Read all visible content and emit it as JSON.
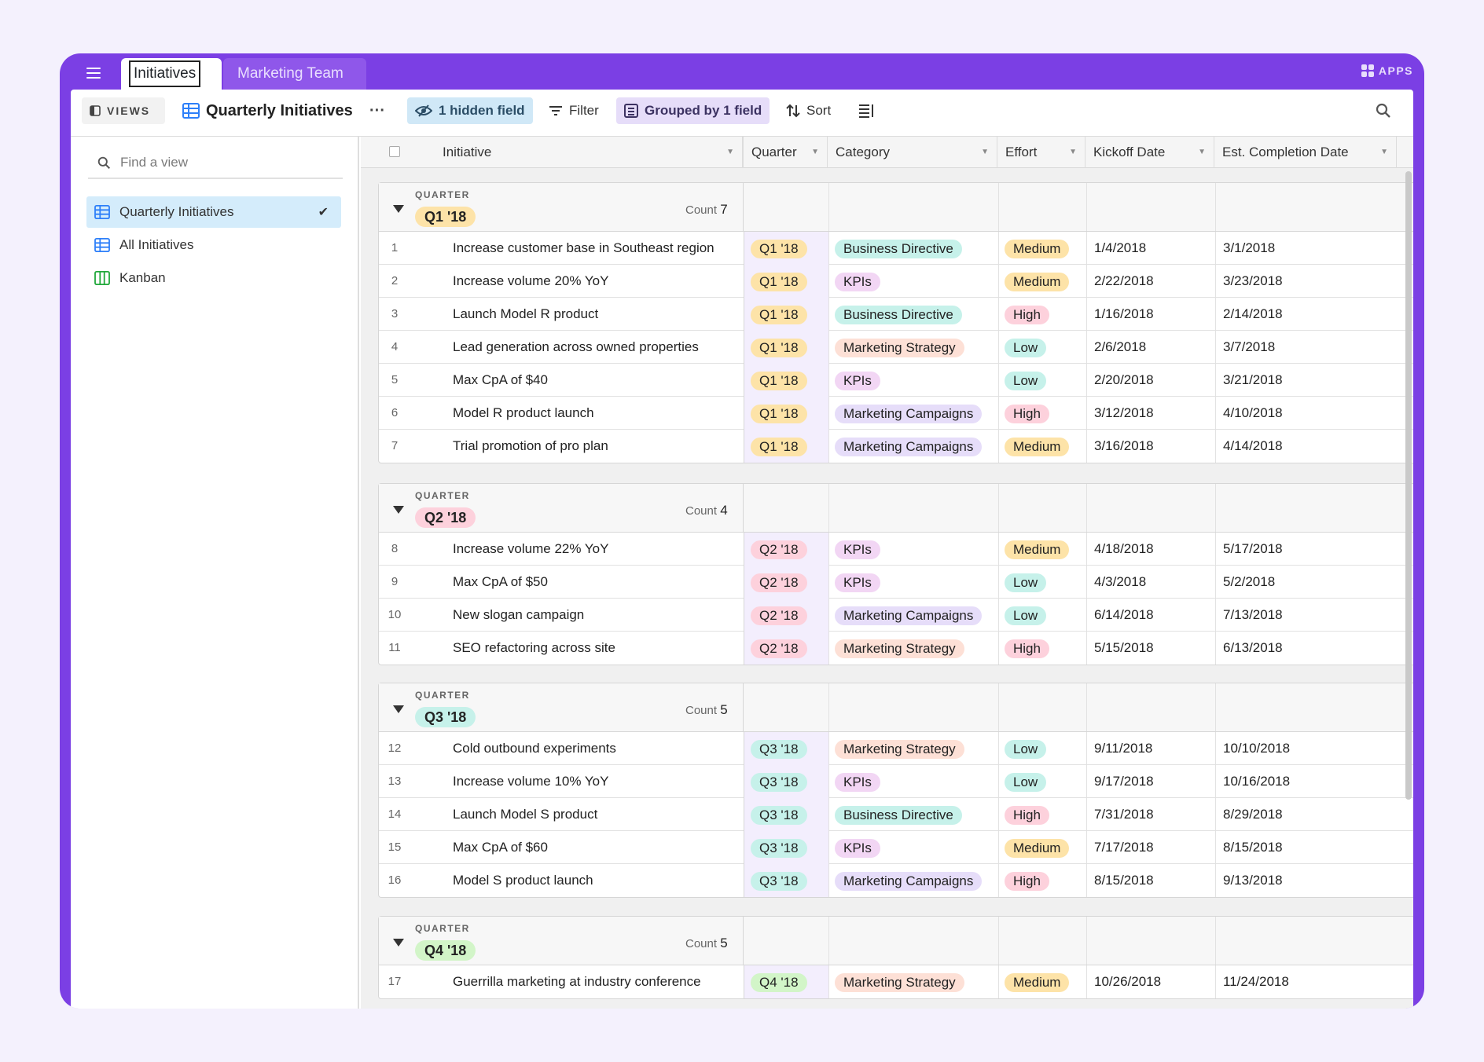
{
  "tabs": {
    "active": "Initiatives",
    "second": "Marketing Team",
    "apps": "APPS"
  },
  "toolbar": {
    "views": "VIEWS",
    "view_title": "Quarterly Initiatives",
    "more": "···",
    "hidden": "1 hidden field",
    "filter": "Filter",
    "grouped": "Grouped by 1 field",
    "sort": "Sort"
  },
  "sidebar": {
    "search_placeholder": "Find a view",
    "items": [
      {
        "label": "Quarterly Initiatives",
        "icon": "grid-icon",
        "active": true
      },
      {
        "label": "All Initiatives",
        "icon": "grid-icon",
        "active": false
      },
      {
        "label": "Kanban",
        "icon": "kanban-icon",
        "active": false
      }
    ]
  },
  "columns": [
    "Initiative",
    "Quarter",
    "Category",
    "Effort",
    "Kickoff Date",
    "Est. Completion Date"
  ],
  "colors": {
    "Q1 '18": "#fde3a8",
    "Q2 '18": "#fdd1dc",
    "Q3 '18": "#c6f1ea",
    "Q4 '18": "#d2f5c8",
    "Business Directive": "#c6f1ea",
    "KPIs": "#f2d6f4",
    "Marketing Strategy": "#fde0d6",
    "Marketing Campaigns": "#e6ddf9",
    "Medium": "#fde3a8",
    "High": "#fdd1dc",
    "Low": "#c6f1ea"
  },
  "groups": [
    {
      "label": "QUARTER",
      "name": "Q1 '18",
      "count_label": "Count",
      "count": "7",
      "rows": [
        {
          "n": "1",
          "name": "Increase customer base in Southeast region",
          "q": "Q1 '18",
          "cat": "Business Directive",
          "eff": "Medium",
          "kick": "1/4/2018",
          "comp": "3/1/2018"
        },
        {
          "n": "2",
          "name": "Increase volume 20% YoY",
          "q": "Q1 '18",
          "cat": "KPIs",
          "eff": "Medium",
          "kick": "2/22/2018",
          "comp": "3/23/2018"
        },
        {
          "n": "3",
          "name": "Launch Model R product",
          "q": "Q1 '18",
          "cat": "Business Directive",
          "eff": "High",
          "kick": "1/16/2018",
          "comp": "2/14/2018"
        },
        {
          "n": "4",
          "name": "Lead generation across owned properties",
          "q": "Q1 '18",
          "cat": "Marketing Strategy",
          "eff": "Low",
          "kick": "2/6/2018",
          "comp": "3/7/2018"
        },
        {
          "n": "5",
          "name": "Max CpA of $40",
          "q": "Q1 '18",
          "cat": "KPIs",
          "eff": "Low",
          "kick": "2/20/2018",
          "comp": "3/21/2018"
        },
        {
          "n": "6",
          "name": "Model R product launch",
          "q": "Q1 '18",
          "cat": "Marketing Campaigns",
          "eff": "High",
          "kick": "3/12/2018",
          "comp": "4/10/2018"
        },
        {
          "n": "7",
          "name": "Trial promotion of pro plan",
          "q": "Q1 '18",
          "cat": "Marketing Campaigns",
          "eff": "Medium",
          "kick": "3/16/2018",
          "comp": "4/14/2018"
        }
      ]
    },
    {
      "label": "QUARTER",
      "name": "Q2 '18",
      "count_label": "Count",
      "count": "4",
      "rows": [
        {
          "n": "8",
          "name": "Increase volume 22% YoY",
          "q": "Q2 '18",
          "cat": "KPIs",
          "eff": "Medium",
          "kick": "4/18/2018",
          "comp": "5/17/2018"
        },
        {
          "n": "9",
          "name": "Max CpA of $50",
          "q": "Q2 '18",
          "cat": "KPIs",
          "eff": "Low",
          "kick": "4/3/2018",
          "comp": "5/2/2018"
        },
        {
          "n": "10",
          "name": "New slogan campaign",
          "q": "Q2 '18",
          "cat": "Marketing Campaigns",
          "eff": "Low",
          "kick": "6/14/2018",
          "comp": "7/13/2018"
        },
        {
          "n": "11",
          "name": "SEO refactoring across site",
          "q": "Q2 '18",
          "cat": "Marketing Strategy",
          "eff": "High",
          "kick": "5/15/2018",
          "comp": "6/13/2018"
        }
      ]
    },
    {
      "label": "QUARTER",
      "name": "Q3 '18",
      "count_label": "Count",
      "count": "5",
      "rows": [
        {
          "n": "12",
          "name": "Cold outbound experiments",
          "q": "Q3 '18",
          "cat": "Marketing Strategy",
          "eff": "Low",
          "kick": "9/11/2018",
          "comp": "10/10/2018"
        },
        {
          "n": "13",
          "name": "Increase volume 10% YoY",
          "q": "Q3 '18",
          "cat": "KPIs",
          "eff": "Low",
          "kick": "9/17/2018",
          "comp": "10/16/2018"
        },
        {
          "n": "14",
          "name": "Launch Model S product",
          "q": "Q3 '18",
          "cat": "Business Directive",
          "eff": "High",
          "kick": "7/31/2018",
          "comp": "8/29/2018"
        },
        {
          "n": "15",
          "name": "Max CpA of $60",
          "q": "Q3 '18",
          "cat": "KPIs",
          "eff": "Medium",
          "kick": "7/17/2018",
          "comp": "8/15/2018"
        },
        {
          "n": "16",
          "name": "Model S product launch",
          "q": "Q3 '18",
          "cat": "Marketing Campaigns",
          "eff": "High",
          "kick": "8/15/2018",
          "comp": "9/13/2018"
        }
      ]
    },
    {
      "label": "QUARTER",
      "name": "Q4 '18",
      "count_label": "Count",
      "count": "5",
      "rows": [
        {
          "n": "17",
          "name": "Guerrilla marketing at industry conference",
          "q": "Q4 '18",
          "cat": "Marketing Strategy",
          "eff": "Medium",
          "kick": "10/26/2018",
          "comp": "11/24/2018"
        }
      ]
    }
  ]
}
